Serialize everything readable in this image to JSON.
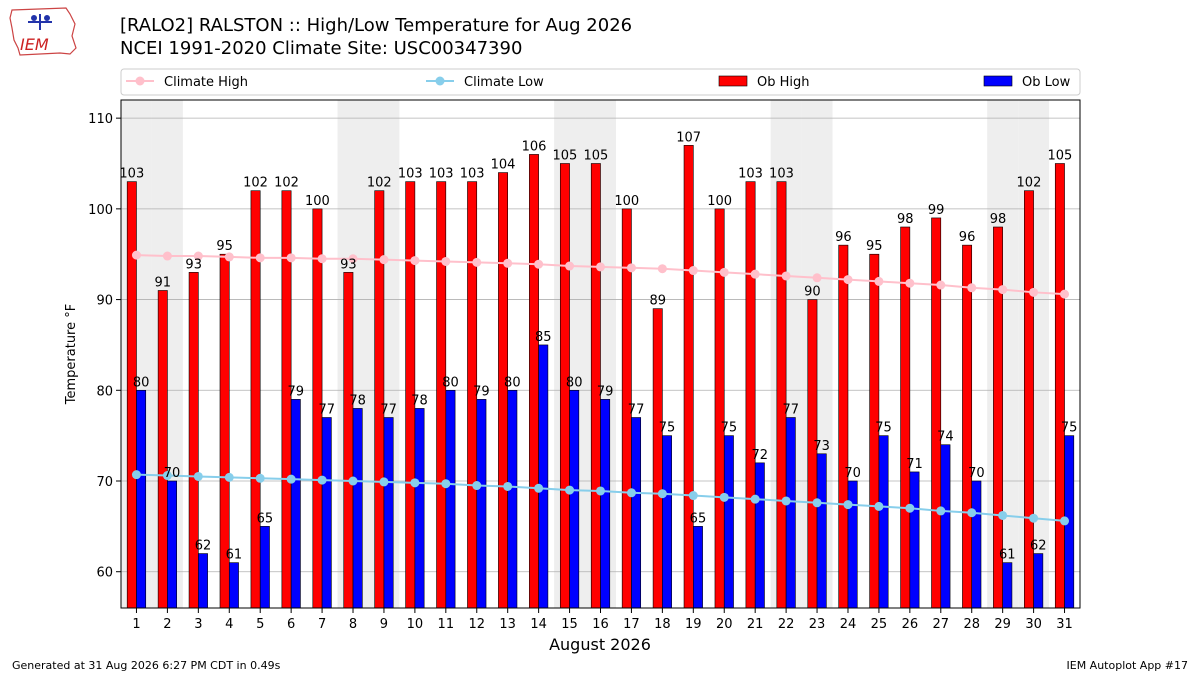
{
  "header": {
    "logo_text": "IEM",
    "title": "[RALO2] RALSTON :: High/Low Temperature for Aug 2026",
    "subtitle": "NCEI 1991-2020 Climate Site: USC00347390"
  },
  "footer": {
    "left": "Generated at 31 Aug 2026 6:27 PM CDT in 0.49s",
    "right": "IEM Autoplot App #17"
  },
  "colors": {
    "climate_high": "#FFC0CB",
    "climate_low": "#87CEEB",
    "ob_high": "#FF0000",
    "ob_low": "#0000FF",
    "weekend_band": "#EEEEEE",
    "grid": "#B0B0B0"
  },
  "chart_data": {
    "type": "bar",
    "xlabel": "August 2026",
    "ylabel": "Temperature °F",
    "ylim": [
      56,
      112
    ],
    "yticks": [
      60,
      70,
      80,
      90,
      100,
      110
    ],
    "grid": true,
    "legend_position": "top",
    "categories": [
      "1",
      "2",
      "3",
      "4",
      "5",
      "6",
      "7",
      "8",
      "9",
      "10",
      "11",
      "12",
      "13",
      "14",
      "15",
      "16",
      "17",
      "18",
      "19",
      "20",
      "21",
      "22",
      "23",
      "24",
      "25",
      "26",
      "27",
      "28",
      "29",
      "30",
      "31"
    ],
    "weekend_days": [
      1,
      2,
      8,
      9,
      15,
      16,
      22,
      23,
      29,
      30
    ],
    "series": [
      {
        "name": "Climate High",
        "kind": "line",
        "values": [
          94.9,
          94.8,
          94.8,
          94.7,
          94.6,
          94.6,
          94.5,
          94.5,
          94.4,
          94.3,
          94.2,
          94.1,
          94.0,
          93.9,
          93.7,
          93.6,
          93.5,
          93.4,
          93.2,
          93.0,
          92.8,
          92.6,
          92.4,
          92.2,
          92.0,
          91.8,
          91.6,
          91.3,
          91.1,
          90.8,
          90.6
        ]
      },
      {
        "name": "Climate Low",
        "kind": "line",
        "values": [
          70.7,
          70.6,
          70.5,
          70.4,
          70.3,
          70.2,
          70.1,
          70.0,
          69.9,
          69.8,
          69.7,
          69.5,
          69.4,
          69.2,
          69.0,
          68.9,
          68.7,
          68.6,
          68.4,
          68.2,
          68.0,
          67.8,
          67.6,
          67.4,
          67.2,
          67.0,
          66.7,
          66.5,
          66.2,
          65.9,
          65.6
        ]
      },
      {
        "name": "Ob High",
        "kind": "bar",
        "values": [
          103,
          91,
          93,
          95,
          102,
          102,
          100,
          93,
          102,
          103,
          103,
          103,
          104,
          106,
          105,
          105,
          100,
          89,
          107,
          100,
          103,
          103,
          90,
          96,
          95,
          98,
          99,
          96,
          98,
          102,
          105
        ]
      },
      {
        "name": "Ob Low",
        "kind": "bar",
        "values": [
          80,
          70,
          62,
          61,
          65,
          79,
          77,
          78,
          77,
          78,
          80,
          79,
          80,
          85,
          80,
          79,
          77,
          75,
          65,
          75,
          72,
          77,
          73,
          70,
          75,
          71,
          74,
          70,
          61,
          62,
          75
        ]
      }
    ]
  }
}
